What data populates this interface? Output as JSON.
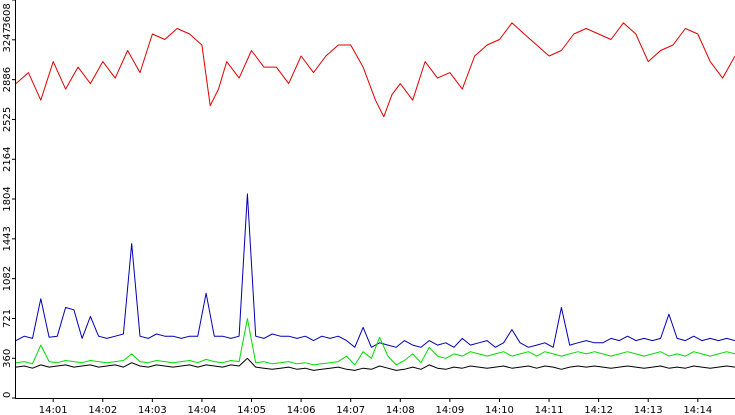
{
  "chart_data": {
    "type": "line",
    "title": "",
    "xlabel": "",
    "ylabel": "",
    "ylim": [
      0,
      3608
    ],
    "xlim": [
      "14:00:15",
      "14:14:45"
    ],
    "grid": false,
    "legend": "none",
    "y_ticks": [
      {
        "value": 0,
        "label": "0"
      },
      {
        "value": 360,
        "label": "360"
      },
      {
        "value": 721,
        "label": "721"
      },
      {
        "value": 1082,
        "label": "1082"
      },
      {
        "value": 1443,
        "label": "1443"
      },
      {
        "value": 1804,
        "label": "1804"
      },
      {
        "value": 2164,
        "label": "2164"
      },
      {
        "value": 2525,
        "label": "2525"
      },
      {
        "value": 2886,
        "label": "2886"
      },
      {
        "value": 3247,
        "label": "3247"
      },
      {
        "value": 3608,
        "label": "3608"
      }
    ],
    "x_ticks": [
      "14:01",
      "14:02",
      "14:03",
      "14:04",
      "14:05",
      "14:06",
      "14:07",
      "14:08",
      "14:09",
      "14:10",
      "14:11",
      "14:12",
      "14:13",
      "14:14"
    ],
    "series": [
      {
        "color": "#e00000",
        "x": [
          "14:00:15",
          "14:00:30",
          "14:00:45",
          "14:01:00",
          "14:01:15",
          "14:01:30",
          "14:01:45",
          "14:02:00",
          "14:02:15",
          "14:02:30",
          "14:02:45",
          "14:03:00",
          "14:03:15",
          "14:03:30",
          "14:03:45",
          "14:04:00",
          "14:04:10",
          "14:04:20",
          "14:04:30",
          "14:04:45",
          "14:05:00",
          "14:05:15",
          "14:05:30",
          "14:05:45",
          "14:06:00",
          "14:06:15",
          "14:06:30",
          "14:06:45",
          "14:07:00",
          "14:07:15",
          "14:07:30",
          "14:07:40",
          "14:07:50",
          "14:08:00",
          "14:08:15",
          "14:08:30",
          "14:08:45",
          "14:09:00",
          "14:09:15",
          "14:09:30",
          "14:09:45",
          "14:10:00",
          "14:10:15",
          "14:10:30",
          "14:10:45",
          "14:11:00",
          "14:11:15",
          "14:11:30",
          "14:11:45",
          "14:12:00",
          "14:12:15",
          "14:12:30",
          "14:12:45",
          "14:13:00",
          "14:13:15",
          "14:13:30",
          "14:13:45",
          "14:14:00",
          "14:14:15",
          "14:14:30",
          "14:14:45"
        ],
        "values": [
          2850,
          2950,
          2700,
          3050,
          2800,
          3000,
          2850,
          3050,
          2900,
          3150,
          2950,
          3300,
          3250,
          3350,
          3300,
          3200,
          2650,
          2800,
          3050,
          2900,
          3150,
          3000,
          3000,
          2850,
          3100,
          2950,
          3100,
          3200,
          3200,
          3000,
          2700,
          2550,
          2750,
          2850,
          2700,
          3050,
          2900,
          2950,
          2800,
          3100,
          3200,
          3250,
          3400,
          3300,
          3200,
          3100,
          3150,
          3300,
          3350,
          3300,
          3250,
          3400,
          3300,
          3050,
          3150,
          3200,
          3350,
          3300,
          3050,
          2900,
          3100
        ]
      },
      {
        "color": "#0000b4",
        "x": [
          "14:00:15",
          "14:00:25",
          "14:00:35",
          "14:00:45",
          "14:00:55",
          "14:01:05",
          "14:01:15",
          "14:01:25",
          "14:01:35",
          "14:01:45",
          "14:01:55",
          "14:02:05",
          "14:02:15",
          "14:02:25",
          "14:02:35",
          "14:02:45",
          "14:02:55",
          "14:03:05",
          "14:03:15",
          "14:03:25",
          "14:03:35",
          "14:03:45",
          "14:03:55",
          "14:04:05",
          "14:04:15",
          "14:04:25",
          "14:04:35",
          "14:04:45",
          "14:04:55",
          "14:05:05",
          "14:05:15",
          "14:05:25",
          "14:05:35",
          "14:05:45",
          "14:05:55",
          "14:06:05",
          "14:06:15",
          "14:06:25",
          "14:06:35",
          "14:06:45",
          "14:06:55",
          "14:07:05",
          "14:07:15",
          "14:07:25",
          "14:07:35",
          "14:07:45",
          "14:07:55",
          "14:08:05",
          "14:08:15",
          "14:08:25",
          "14:08:35",
          "14:08:45",
          "14:08:55",
          "14:09:05",
          "14:09:15",
          "14:09:25",
          "14:09:35",
          "14:09:45",
          "14:09:55",
          "14:10:05",
          "14:10:15",
          "14:10:25",
          "14:10:35",
          "14:10:45",
          "14:10:55",
          "14:11:05",
          "14:11:15",
          "14:11:25",
          "14:11:35",
          "14:11:45",
          "14:11:55",
          "14:12:05",
          "14:12:15",
          "14:12:25",
          "14:12:35",
          "14:12:45",
          "14:12:55",
          "14:13:05",
          "14:13:15",
          "14:13:25",
          "14:13:35",
          "14:13:45",
          "14:13:55",
          "14:14:05",
          "14:14:15",
          "14:14:25",
          "14:14:35",
          "14:14:45"
        ],
        "values": [
          520,
          560,
          540,
          900,
          550,
          560,
          820,
          800,
          540,
          740,
          560,
          540,
          560,
          580,
          1400,
          560,
          540,
          580,
          560,
          560,
          540,
          560,
          560,
          950,
          560,
          560,
          540,
          560,
          1850,
          560,
          540,
          580,
          560,
          560,
          540,
          560,
          520,
          560,
          540,
          560,
          520,
          460,
          640,
          460,
          500,
          480,
          460,
          520,
          480,
          460,
          520,
          480,
          500,
          460,
          540,
          480,
          500,
          520,
          460,
          500,
          620,
          500,
          460,
          480,
          500,
          460,
          820,
          480,
          500,
          520,
          500,
          500,
          540,
          520,
          560,
          520,
          540,
          520,
          540,
          760,
          540,
          520,
          560,
          520,
          540,
          520,
          540,
          520
        ]
      },
      {
        "color": "#00dd00",
        "x": [
          "14:00:15",
          "14:00:25",
          "14:00:35",
          "14:00:45",
          "14:00:55",
          "14:01:05",
          "14:01:15",
          "14:01:25",
          "14:01:35",
          "14:01:45",
          "14:01:55",
          "14:02:05",
          "14:02:15",
          "14:02:25",
          "14:02:35",
          "14:02:45",
          "14:02:55",
          "14:03:05",
          "14:03:15",
          "14:03:25",
          "14:03:35",
          "14:03:45",
          "14:03:55",
          "14:04:05",
          "14:04:15",
          "14:04:25",
          "14:04:35",
          "14:04:45",
          "14:04:55",
          "14:05:05",
          "14:05:15",
          "14:05:25",
          "14:05:35",
          "14:05:45",
          "14:05:55",
          "14:06:05",
          "14:06:15",
          "14:06:25",
          "14:06:35",
          "14:06:45",
          "14:06:55",
          "14:07:05",
          "14:07:15",
          "14:07:25",
          "14:07:35",
          "14:07:45",
          "14:07:55",
          "14:08:05",
          "14:08:15",
          "14:08:25",
          "14:08:35",
          "14:08:45",
          "14:08:55",
          "14:09:05",
          "14:09:15",
          "14:09:25",
          "14:09:35",
          "14:09:45",
          "14:09:55",
          "14:10:05",
          "14:10:15",
          "14:10:25",
          "14:10:35",
          "14:10:45",
          "14:10:55",
          "14:11:05",
          "14:11:15",
          "14:11:25",
          "14:11:35",
          "14:11:45",
          "14:11:55",
          "14:12:05",
          "14:12:15",
          "14:12:25",
          "14:12:35",
          "14:12:45",
          "14:12:55",
          "14:13:05",
          "14:13:15",
          "14:13:25",
          "14:13:35",
          "14:13:45",
          "14:13:55",
          "14:14:05",
          "14:14:15",
          "14:14:25",
          "14:14:35",
          "14:14:45"
        ],
        "values": [
          320,
          330,
          310,
          480,
          330,
          320,
          340,
          330,
          320,
          340,
          330,
          320,
          330,
          340,
          400,
          330,
          320,
          340,
          330,
          320,
          330,
          340,
          320,
          350,
          330,
          320,
          340,
          330,
          720,
          320,
          330,
          310,
          320,
          330,
          310,
          320,
          300,
          310,
          320,
          330,
          380,
          300,
          420,
          360,
          550,
          380,
          300,
          340,
          400,
          320,
          460,
          380,
          360,
          400,
          380,
          420,
          400,
          380,
          400,
          420,
          380,
          400,
          420,
          380,
          420,
          400,
          380,
          400,
          420,
          400,
          420,
          400,
          380,
          400,
          420,
          400,
          380,
          400,
          420,
          380,
          400,
          380,
          420,
          400,
          380,
          400,
          420,
          400
        ]
      },
      {
        "color": "#000000",
        "x": [
          "14:00:15",
          "14:00:25",
          "14:00:35",
          "14:00:45",
          "14:00:55",
          "14:01:05",
          "14:01:15",
          "14:01:25",
          "14:01:35",
          "14:01:45",
          "14:01:55",
          "14:02:05",
          "14:02:15",
          "14:02:25",
          "14:02:35",
          "14:02:45",
          "14:02:55",
          "14:03:05",
          "14:03:15",
          "14:03:25",
          "14:03:35",
          "14:03:45",
          "14:03:55",
          "14:04:05",
          "14:04:15",
          "14:04:25",
          "14:04:35",
          "14:04:45",
          "14:04:55",
          "14:05:05",
          "14:05:15",
          "14:05:25",
          "14:05:35",
          "14:05:45",
          "14:05:55",
          "14:06:05",
          "14:06:15",
          "14:06:25",
          "14:06:35",
          "14:06:45",
          "14:06:55",
          "14:07:05",
          "14:07:15",
          "14:07:25",
          "14:07:35",
          "14:07:45",
          "14:07:55",
          "14:08:05",
          "14:08:15",
          "14:08:25",
          "14:08:35",
          "14:08:45",
          "14:08:55",
          "14:09:05",
          "14:09:15",
          "14:09:25",
          "14:09:35",
          "14:09:45",
          "14:09:55",
          "14:10:05",
          "14:10:15",
          "14:10:25",
          "14:10:35",
          "14:10:45",
          "14:10:55",
          "14:11:05",
          "14:11:15",
          "14:11:25",
          "14:11:35",
          "14:11:45",
          "14:11:55",
          "14:12:05",
          "14:12:15",
          "14:12:25",
          "14:12:35",
          "14:12:45",
          "14:12:55",
          "14:13:05",
          "14:13:15",
          "14:13:25",
          "14:13:35",
          "14:13:45",
          "14:13:55",
          "14:14:05",
          "14:14:15",
          "14:14:25",
          "14:14:35",
          "14:14:45"
        ],
        "values": [
          280,
          290,
          270,
          300,
          280,
          290,
          300,
          280,
          290,
          300,
          280,
          290,
          300,
          280,
          320,
          290,
          280,
          300,
          290,
          280,
          290,
          300,
          280,
          300,
          290,
          280,
          300,
          290,
          360,
          280,
          270,
          260,
          270,
          280,
          260,
          270,
          250,
          260,
          270,
          280,
          260,
          250,
          270,
          260,
          290,
          270,
          250,
          260,
          280,
          260,
          300,
          270,
          260,
          280,
          270,
          290,
          280,
          270,
          280,
          290,
          270,
          280,
          290,
          270,
          290,
          280,
          260,
          280,
          290,
          280,
          290,
          280,
          270,
          280,
          290,
          280,
          270,
          280,
          290,
          270,
          280,
          270,
          290,
          280,
          270,
          280,
          290,
          280
        ]
      }
    ]
  }
}
